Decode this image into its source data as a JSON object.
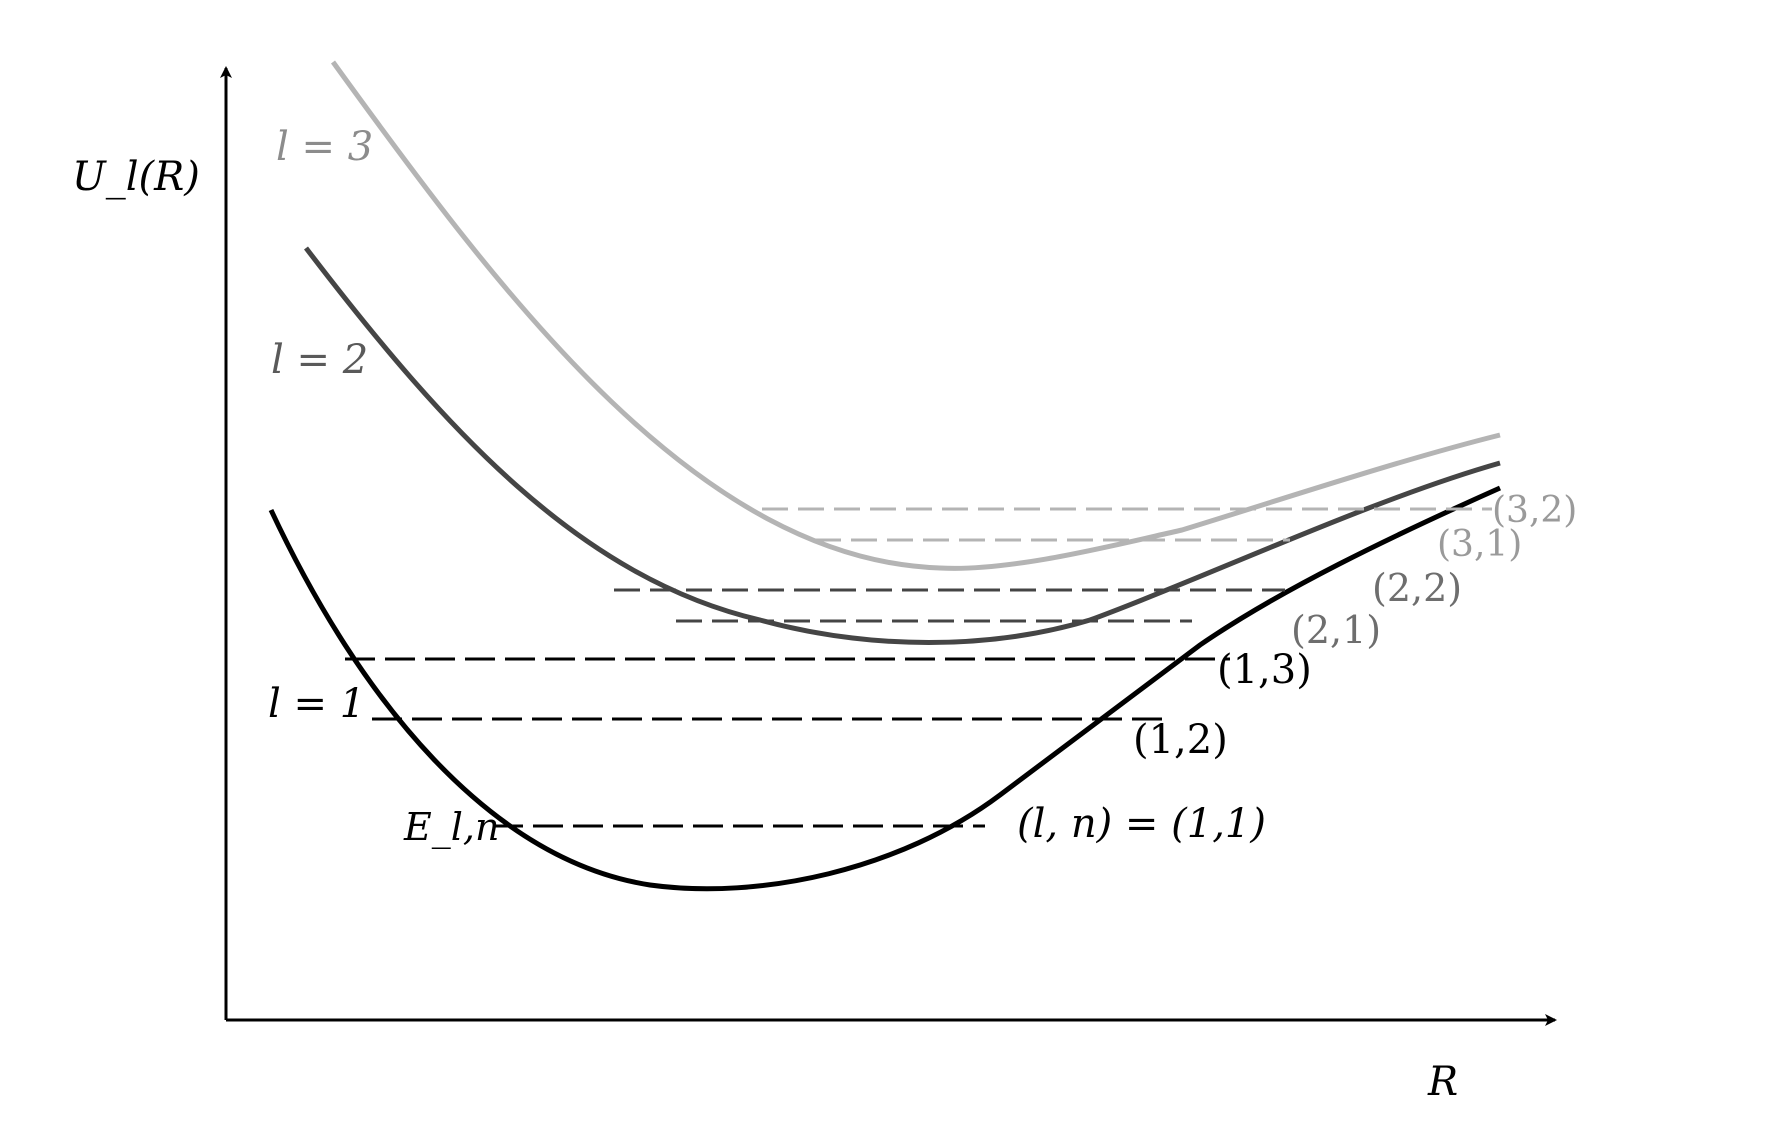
{
  "axes": {
    "y_label": "U_l(R)",
    "x_label": "R"
  },
  "colors": {
    "axis": "#000000",
    "l1": "#000000",
    "l2": "#454545",
    "l3": "#b4b4b4"
  },
  "curves": [
    {
      "label": "l = 1",
      "color": "#000000"
    },
    {
      "label": "l = 2",
      "color": "#454545"
    },
    {
      "label": "l = 3",
      "color": "#b4b4b4"
    }
  ],
  "energy_symbol": "E_l,n",
  "levels": [
    {
      "label": "(l, n) = (1,1)",
      "color": "#000000"
    },
    {
      "label": "(1,2)",
      "color": "#000000"
    },
    {
      "label": "(1,3)",
      "color": "#000000"
    },
    {
      "label": "(2,1)",
      "color": "#454545"
    },
    {
      "label": "(2,2)",
      "color": "#454545"
    },
    {
      "label": "(3,1)",
      "color": "#b4b4b4"
    },
    {
      "label": "(3,2)",
      "color": "#b4b4b4"
    }
  ]
}
